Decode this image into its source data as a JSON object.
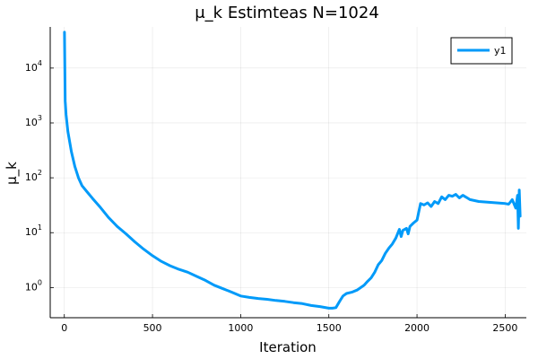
{
  "chart_data": {
    "type": "line",
    "title": "μ_k Estimteas N=1024",
    "xlabel": "Iteration",
    "ylabel": "μ_k",
    "yscale": "log",
    "xlim": [
      -80,
      2620
    ],
    "ylim_log10": [
      -0.55,
      4.75
    ],
    "grid": true,
    "legend": "top-right",
    "x_ticks": [
      {
        "value": 0,
        "label": "0"
      },
      {
        "value": 500,
        "label": "500"
      },
      {
        "value": 1000,
        "label": "1000"
      },
      {
        "value": 1500,
        "label": "1500"
      },
      {
        "value": 2000,
        "label": "2000"
      },
      {
        "value": 2500,
        "label": "2500"
      }
    ],
    "y_ticks": [
      {
        "value": 1,
        "base": "10",
        "exp": "0"
      },
      {
        "value": 10,
        "base": "10",
        "exp": "1"
      },
      {
        "value": 100,
        "base": "10",
        "exp": "2"
      },
      {
        "value": 1000,
        "base": "10",
        "exp": "3"
      },
      {
        "value": 10000,
        "base": "10",
        "exp": "4"
      }
    ],
    "series": [
      {
        "name": "y1",
        "color": "#009af9",
        "x": [
          1,
          5,
          10,
          20,
          40,
          60,
          80,
          100,
          130,
          160,
          200,
          250,
          300,
          350,
          400,
          450,
          500,
          550,
          600,
          650,
          700,
          750,
          800,
          850,
          900,
          950,
          1000,
          1050,
          1100,
          1150,
          1200,
          1250,
          1300,
          1350,
          1400,
          1450,
          1500,
          1520,
          1540,
          1560,
          1580,
          1600,
          1630,
          1660,
          1700,
          1720,
          1740,
          1760,
          1780,
          1800,
          1820,
          1840,
          1860,
          1880,
          1900,
          1910,
          1920,
          1940,
          1950,
          1960,
          1980,
          2000,
          2020,
          2040,
          2060,
          2080,
          2100,
          2120,
          2140,
          2160,
          2180,
          2200,
          2220,
          2240,
          2260,
          2280,
          2300,
          2350,
          2400,
          2450,
          2500,
          2520,
          2540,
          2560,
          2565,
          2570,
          2575,
          2580,
          2585
        ],
        "values": [
          45000,
          2500,
          1400,
          700,
          300,
          160,
          100,
          72,
          55,
          42,
          30,
          19,
          13,
          9.5,
          6.8,
          5.0,
          3.8,
          3.0,
          2.5,
          2.15,
          1.9,
          1.6,
          1.35,
          1.1,
          0.95,
          0.82,
          0.7,
          0.66,
          0.63,
          0.61,
          0.58,
          0.56,
          0.53,
          0.51,
          0.47,
          0.45,
          0.42,
          0.42,
          0.43,
          0.55,
          0.7,
          0.78,
          0.82,
          0.9,
          1.1,
          1.3,
          1.5,
          1.9,
          2.6,
          3.1,
          4.2,
          5.2,
          6.2,
          8.0,
          11.5,
          8.5,
          11,
          12,
          9.5,
          13,
          15,
          17,
          34,
          32,
          35,
          30,
          37,
          34,
          45,
          40,
          48,
          46,
          50,
          43,
          48,
          44,
          40,
          37,
          36,
          35,
          34,
          33,
          40,
          28,
          36,
          48,
          12,
          60,
          20
        ]
      }
    ]
  }
}
